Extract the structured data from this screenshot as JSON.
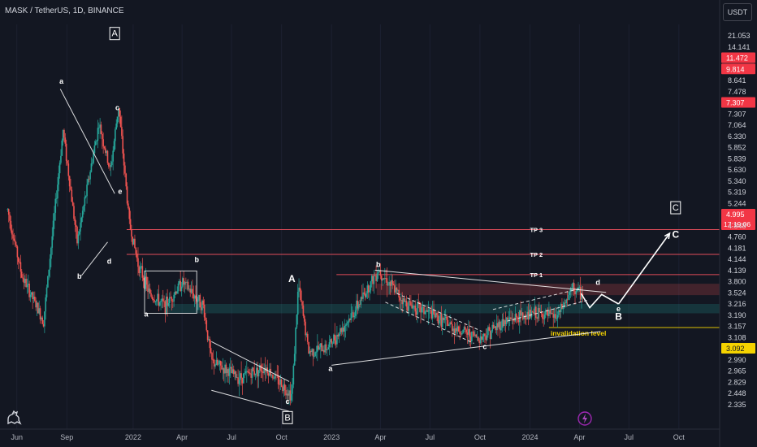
{
  "header": {
    "symbol_title": "MASK / TetherUS, 1D, BINANCE",
    "currency_button": "USDT"
  },
  "icons": {
    "logo": "dinosaur-logo-icon",
    "alert": "lightning-bolt-icon"
  },
  "colors": {
    "background": "#131722",
    "candle_up": "#26a69a",
    "candle_down": "#ef5350",
    "resistance_zone": "#ef5350",
    "support_zone": "#26a69a",
    "tp_line": "#f7525f",
    "invalidation_line": "#f5d300",
    "annotation": "#ffffff",
    "current_price_bg": "#f23645"
  },
  "chart_data": {
    "type": "candlestick",
    "title": "MASK / TetherUS, 1D, BINANCE",
    "x_axis": {
      "labels": [
        "Jun",
        "Sep",
        "2022",
        "Apr",
        "Jul",
        "Oct",
        "2023",
        "Apr",
        "Jul",
        "Oct",
        "2024",
        "Apr",
        "Jul",
        "Oct"
      ],
      "range": [
        "2021-05",
        "2024-12"
      ]
    },
    "y_axis": {
      "scale": "log",
      "unit": "USDT",
      "range": [
        2.3,
        24
      ],
      "tick_labels": [
        "21.053",
        "14.141",
        "11.472",
        "9.814",
        "8.641",
        "7.478",
        "7.307",
        "7.307",
        "7.064",
        "6.330",
        "5.852",
        "5.839",
        "5.630",
        "5.340",
        "5.319",
        "5.244",
        "4.995",
        "4.848",
        "4.760",
        "4.181",
        "4.144",
        "4.139",
        "3.800",
        "3.524",
        "3.216",
        "3.190",
        "3.157",
        "3.108",
        "3.092",
        "2.990",
        "2.965",
        "2.829",
        "2.448",
        "2.335"
      ],
      "highlighted_labels": [
        "11.472",
        "9.814",
        "7.307",
        "4.995",
        "3.092"
      ]
    },
    "current_price": {
      "value": "4.995",
      "countdown": "17:19:06"
    },
    "price_path_approx": [
      {
        "x": "2021-05-15",
        "y": 8.2
      },
      {
        "x": "2021-06-10",
        "y": 5.6
      },
      {
        "x": "2021-07-20",
        "y": 4.3
      },
      {
        "x": "2021-08-25",
        "y": 13.0
      },
      {
        "x": "2021-09-20",
        "y": 6.8
      },
      {
        "x": "2021-10-30",
        "y": 13.5
      },
      {
        "x": "2021-11-20",
        "y": 10.2
      },
      {
        "x": "2021-12-05",
        "y": 15.0
      },
      {
        "x": "2021-12-25",
        "y": 7.6
      },
      {
        "x": "2022-01-10",
        "y": 6.0
      },
      {
        "x": "2022-02-01",
        "y": 5.0
      },
      {
        "x": "2022-03-01",
        "y": 4.7
      },
      {
        "x": "2022-04-01",
        "y": 5.4
      },
      {
        "x": "2022-05-10",
        "y": 4.7
      },
      {
        "x": "2022-05-25",
        "y": 3.4
      },
      {
        "x": "2022-07-15",
        "y": 3.1
      },
      {
        "x": "2022-09-01",
        "y": 3.3
      },
      {
        "x": "2022-10-20",
        "y": 2.8
      },
      {
        "x": "2022-11-01",
        "y": 5.3
      },
      {
        "x": "2022-11-20",
        "y": 3.6
      },
      {
        "x": "2022-12-25",
        "y": 3.7
      },
      {
        "x": "2023-02-10",
        "y": 4.5
      },
      {
        "x": "2023-03-28",
        "y": 5.8
      },
      {
        "x": "2023-05-15",
        "y": 4.8
      },
      {
        "x": "2023-07-01",
        "y": 4.5
      },
      {
        "x": "2023-08-20",
        "y": 4.1
      },
      {
        "x": "2023-10-01",
        "y": 3.9
      },
      {
        "x": "2023-11-15",
        "y": 4.3
      },
      {
        "x": "2024-01-10",
        "y": 4.5
      },
      {
        "x": "2024-02-20",
        "y": 4.4
      },
      {
        "x": "2024-03-20",
        "y": 5.2
      },
      {
        "x": "2024-04-08",
        "y": 4.995
      }
    ],
    "zones": [
      {
        "name": "resistance-zone",
        "type": "resistance",
        "range": [
          5.0,
          5.34
        ]
      },
      {
        "name": "support-zone",
        "type": "support",
        "range": [
          4.5,
          4.75
        ]
      }
    ],
    "horizontal_levels": [
      {
        "label": "TP 3",
        "price": 7.307
      },
      {
        "label": "TP 2",
        "price": 6.33
      },
      {
        "label": "TP 1",
        "price": 5.63
      },
      {
        "label": "invalidation level",
        "price": 4.144
      }
    ],
    "wave_labels": {
      "boxed": [
        "A",
        "B",
        "C"
      ],
      "primary": [
        "A",
        "B",
        "C"
      ],
      "sub": [
        "a",
        "b",
        "c",
        "d",
        "e"
      ]
    },
    "projection": [
      "e",
      "B",
      "C"
    ]
  }
}
